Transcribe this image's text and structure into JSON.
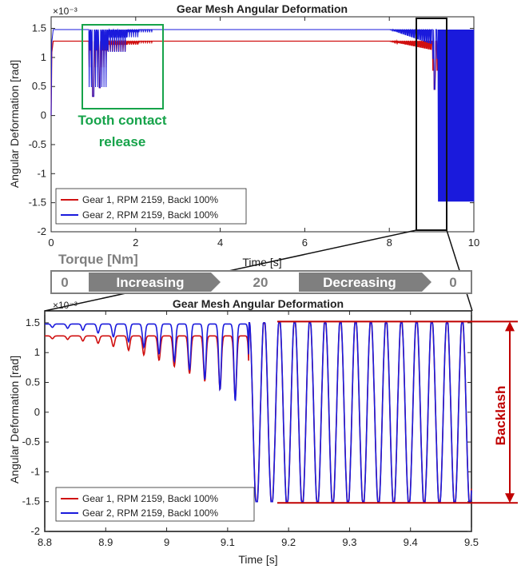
{
  "colors": {
    "gear1": "#d01010",
    "gear2": "#1a1adc",
    "annotation_green": "#16a34a",
    "torque_bar": "#7f7f7f",
    "backlash": "#c00000"
  },
  "annotations": {
    "tooth_line1": "Tooth contact",
    "tooth_line2": "release",
    "torque_label": "Torque [Nm]",
    "torque_stages": [
      "0",
      "Increasing",
      "20",
      "Decreasing",
      "0"
    ],
    "backlash": "Backlash"
  },
  "chart_data": [
    {
      "type": "line",
      "title": "Gear Mesh Angular Deformation",
      "xlabel": "Time [s]",
      "ylabel": "Angular Deformation [rad]",
      "y_exponent": "×10⁻³",
      "xlim": [
        0,
        10
      ],
      "ylim": [
        -2,
        1.7
      ],
      "xticks": [
        "0",
        "2",
        "4",
        "6",
        "8",
        "10"
      ],
      "yticks": [
        "-2",
        "-1.5",
        "-1",
        "-0.5",
        "0",
        "0.5",
        "1",
        "1.5"
      ],
      "legend_position": "bottom-left",
      "series": [
        {
          "name": "Gear 1, RPM 2159, Backl 100%",
          "steady_value": 1.28
        },
        {
          "name": "Gear 2, RPM 2159, Backl 100%",
          "steady_value": 1.48
        }
      ]
    },
    {
      "type": "line",
      "title": "Gear Mesh Angular Deformation",
      "xlabel": "Time [s]",
      "ylabel": "Angular Deformation [rad]",
      "y_exponent": "×10⁻³",
      "xlim": [
        8.8,
        9.5
      ],
      "ylim": [
        -2,
        1.7
      ],
      "xticks": [
        "8.8",
        "8.9",
        "9",
        "9.1",
        "9.2",
        "9.3",
        "9.4",
        "9.5"
      ],
      "yticks": [
        "-2",
        "-1.5",
        "-1",
        "-0.5",
        "0",
        "0.5",
        "1",
        "1.5"
      ],
      "legend_position": "bottom-left",
      "backlash_limits": [
        -1.52,
        1.52
      ],
      "series": [
        {
          "name": "Gear 1, RPM 2159, Backl 100%",
          "steady_value": 1.28
        },
        {
          "name": "Gear 2, RPM 2159, Backl 100%",
          "steady_value": 1.48
        }
      ]
    }
  ]
}
